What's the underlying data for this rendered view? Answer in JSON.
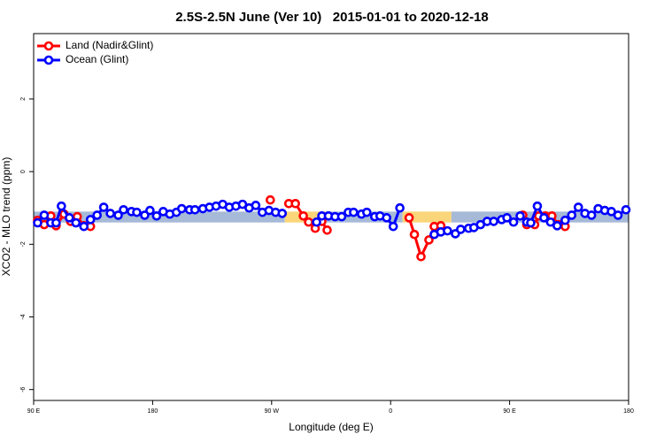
{
  "chart_data": {
    "type": "line",
    "title": "2.5S-2.5N June (Ver 10)   2015-01-01 to 2020-12-18",
    "x_label": "Longitude (deg E)",
    "y_label": "XCO2 - MLO trend (ppm)",
    "xlim": [
      90,
      540
    ],
    "xticks": [
      {
        "value": 90,
        "label": "90 E"
      },
      180,
      {
        "value": 270,
        "label": "90 W"
      },
      {
        "value": 360,
        "label": "0"
      },
      {
        "value": 450,
        "label": "90 E"
      },
      {
        "value": 540,
        "label": "180"
      }
    ],
    "ylim": [
      -6.3,
      3.8
    ],
    "yticks": [
      -6,
      -4,
      -2,
      0,
      2
    ],
    "legend": "top-left",
    "band_range": [
      -1.4,
      -1.1
    ],
    "bands": [
      {
        "from": 90,
        "to": 280,
        "color": "#a6bad8"
      },
      {
        "from": 280,
        "to": 311,
        "color": "#fbd57a"
      },
      {
        "from": 311,
        "to": 369,
        "color": "#a6bad8"
      },
      {
        "from": 369,
        "to": 406,
        "color": "#fbd57a"
      },
      {
        "from": 406,
        "to": 540,
        "color": "#a6bad8"
      }
    ],
    "series": [
      {
        "name": "Land (Nadir&Glint)",
        "color": "#ff0000",
        "x": [
          93,
          98,
          103,
          107,
          113,
          118,
          123,
          128,
          133,
          null,
          269,
          null,
          283,
          288,
          294,
          298,
          303,
          308,
          312,
          null,
          374,
          378,
          383,
          389,
          393,
          398,
          null,
          460,
          463,
          469,
          472,
          477,
          482,
          487,
          492
        ],
        "values": [
          -1.34,
          -1.46,
          -1.22,
          -1.49,
          -1.17,
          -1.37,
          -1.24,
          -1.49,
          -1.51,
          null,
          -0.78,
          null,
          -0.88,
          -0.88,
          -1.22,
          -1.39,
          -1.56,
          -1.37,
          -1.61,
          null,
          -1.27,
          -1.73,
          -2.34,
          -1.88,
          -1.51,
          -1.49,
          null,
          -1.2,
          -1.46,
          -1.46,
          -1.22,
          -1.22,
          -1.22,
          -1.46,
          -1.51
        ]
      },
      {
        "name": "Ocean (Glint)",
        "color": "#0000ff",
        "x": [
          93,
          98,
          103,
          107,
          111,
          117,
          122,
          128,
          133,
          138,
          143,
          148,
          154,
          158,
          164,
          168,
          174,
          178,
          183,
          188,
          193,
          198,
          202,
          208,
          212,
          218,
          223,
          228,
          233,
          238,
          243,
          248,
          253,
          258,
          263,
          268,
          273,
          278,
          null,
          304,
          308,
          313,
          318,
          323,
          328,
          332,
          338,
          342,
          348,
          352,
          357,
          362,
          367,
          null,
          393,
          398,
          403,
          409,
          413,
          419,
          423,
          428,
          433,
          438,
          444,
          448,
          453,
          458,
          463,
          466,
          471,
          476,
          481,
          486,
          492,
          497,
          502,
          507,
          512,
          517,
          522,
          527,
          532,
          538
        ],
        "values": [
          -1.41,
          -1.2,
          -1.41,
          -1.41,
          -0.95,
          -1.27,
          -1.41,
          -1.51,
          -1.32,
          -1.2,
          -0.98,
          -1.15,
          -1.2,
          -1.05,
          -1.1,
          -1.12,
          -1.2,
          -1.07,
          -1.22,
          -1.1,
          -1.17,
          -1.12,
          -1.02,
          -1.05,
          -1.05,
          -1.02,
          -0.98,
          -0.95,
          -0.9,
          -0.98,
          -0.95,
          -0.9,
          -1.0,
          -0.93,
          -1.12,
          -1.07,
          -1.12,
          -1.15,
          null,
          -1.39,
          -1.22,
          -1.22,
          -1.24,
          -1.24,
          -1.12,
          -1.12,
          -1.17,
          -1.12,
          -1.24,
          -1.22,
          -1.27,
          -1.51,
          -1.0,
          null,
          -1.73,
          -1.66,
          -1.63,
          -1.71,
          -1.59,
          -1.56,
          -1.54,
          -1.46,
          -1.37,
          -1.37,
          -1.32,
          -1.27,
          -1.39,
          -1.22,
          -1.39,
          -1.41,
          -0.95,
          -1.27,
          -1.39,
          -1.49,
          -1.34,
          -1.2,
          -0.98,
          -1.15,
          -1.2,
          -1.02,
          -1.07,
          -1.1,
          -1.2,
          -1.05
        ]
      }
    ]
  }
}
